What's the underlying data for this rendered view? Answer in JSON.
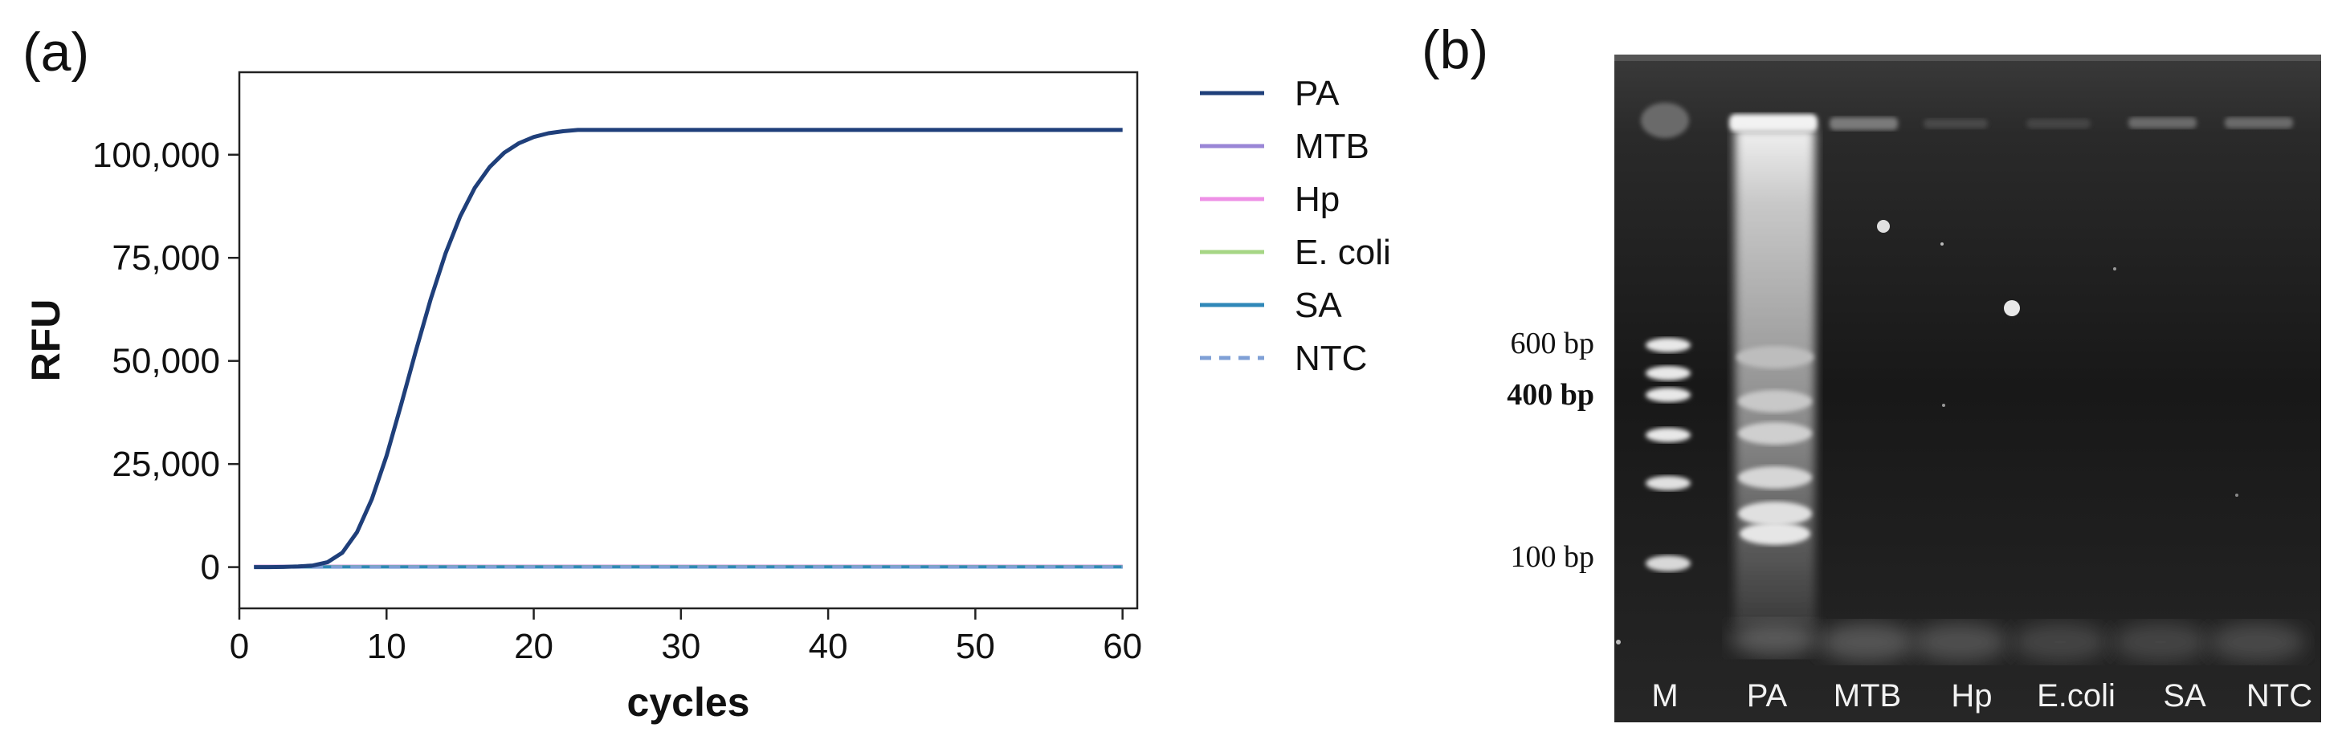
{
  "panel_a": {
    "label": "(a)"
  },
  "panel_b": {
    "label": "(b)"
  },
  "chart_data": {
    "type": "line",
    "xlabel": "cycles",
    "ylabel": "RFU",
    "xlim": [
      0,
      61
    ],
    "ylim": [
      -10000,
      120000
    ],
    "xticks": [
      0,
      10,
      20,
      30,
      40,
      50,
      60
    ],
    "yticks": [
      0,
      25000,
      50000,
      75000,
      100000
    ],
    "xtick_labels": [
      "0",
      "10",
      "20",
      "30",
      "40",
      "50",
      "60"
    ],
    "ytick_labels": [
      "0",
      "25,000",
      "50,000",
      "75,000",
      "100,000"
    ],
    "grid": false,
    "legend_position": "right",
    "series": [
      {
        "name": "PA",
        "color": "#1f3f7a",
        "style": "solid",
        "x": [
          1,
          2,
          3,
          4,
          5,
          6,
          7,
          8,
          9,
          10,
          11,
          12,
          13,
          14,
          15,
          16,
          17,
          18,
          19,
          20,
          21,
          22,
          23,
          24,
          25,
          30,
          35,
          40,
          45,
          50,
          55,
          60
        ],
        "values": [
          0,
          0,
          50,
          150,
          400,
          1200,
          3500,
          8500,
          16500,
          27000,
          39500,
          52500,
          65000,
          76000,
          85000,
          92000,
          97000,
          100500,
          102800,
          104300,
          105200,
          105700,
          106000,
          106000,
          106000,
          106000,
          106000,
          106000,
          106000,
          106000,
          106000,
          106000
        ]
      },
      {
        "name": "MTB",
        "color": "#9a86d6",
        "style": "solid",
        "x": [
          1,
          60
        ],
        "values": [
          200,
          200
        ]
      },
      {
        "name": "Hp",
        "color": "#ee90e6",
        "style": "solid",
        "x": [
          1,
          60
        ],
        "values": [
          150,
          150
        ]
      },
      {
        "name": "E. coli",
        "color": "#a6d685",
        "style": "solid",
        "x": [
          1,
          60
        ],
        "values": [
          100,
          100
        ]
      },
      {
        "name": "SA",
        "color": "#2f88b8",
        "style": "solid",
        "x": [
          1,
          60
        ],
        "values": [
          50,
          50
        ]
      },
      {
        "name": "NTC",
        "color": "#7fa0d6",
        "style": "dashed",
        "x": [
          1,
          60
        ],
        "values": [
          0,
          0
        ]
      }
    ]
  },
  "gel": {
    "lanes": [
      "M",
      "PA",
      "MTB",
      "Hp",
      "E.coli",
      "SA",
      "NTC"
    ],
    "marker_labels": [
      {
        "text": "600 bp",
        "bold": false
      },
      {
        "text": "400 bp",
        "bold": true
      },
      {
        "text": "100 bp",
        "bold": false
      }
    ]
  }
}
